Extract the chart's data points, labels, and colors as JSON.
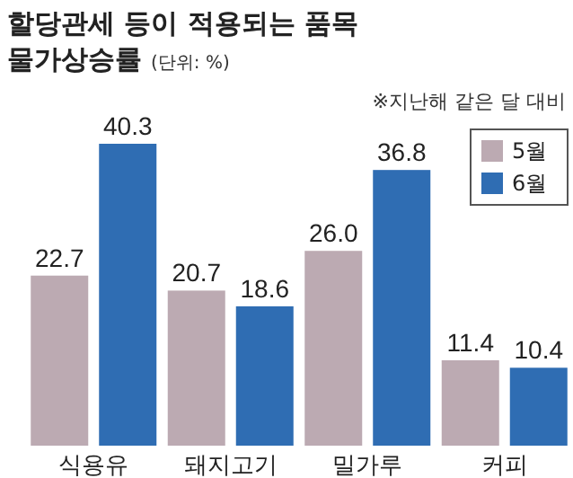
{
  "chart_data": {
    "type": "bar",
    "title": "할당관세 등이 적용되는 품목 물가상승률",
    "subtitle": "(단위: %)",
    "annotations": [
      "※지난해 같은 달 대비"
    ],
    "categories": [
      "식용유",
      "돼지고기",
      "밀가루",
      "커피"
    ],
    "series": [
      {
        "name": "5월",
        "color": "#bcaab2",
        "values": [
          22.7,
          20.7,
          26.0,
          11.4
        ],
        "value_labels": [
          "22.7",
          "20.7",
          "26.0",
          "11.4"
        ]
      },
      {
        "name": "6월",
        "color": "#2f6db3",
        "values": [
          40.3,
          18.6,
          36.8,
          10.4
        ],
        "value_labels": [
          "40.3",
          "18.6",
          "36.8",
          "10.4"
        ]
      }
    ],
    "legend": "right"
  }
}
